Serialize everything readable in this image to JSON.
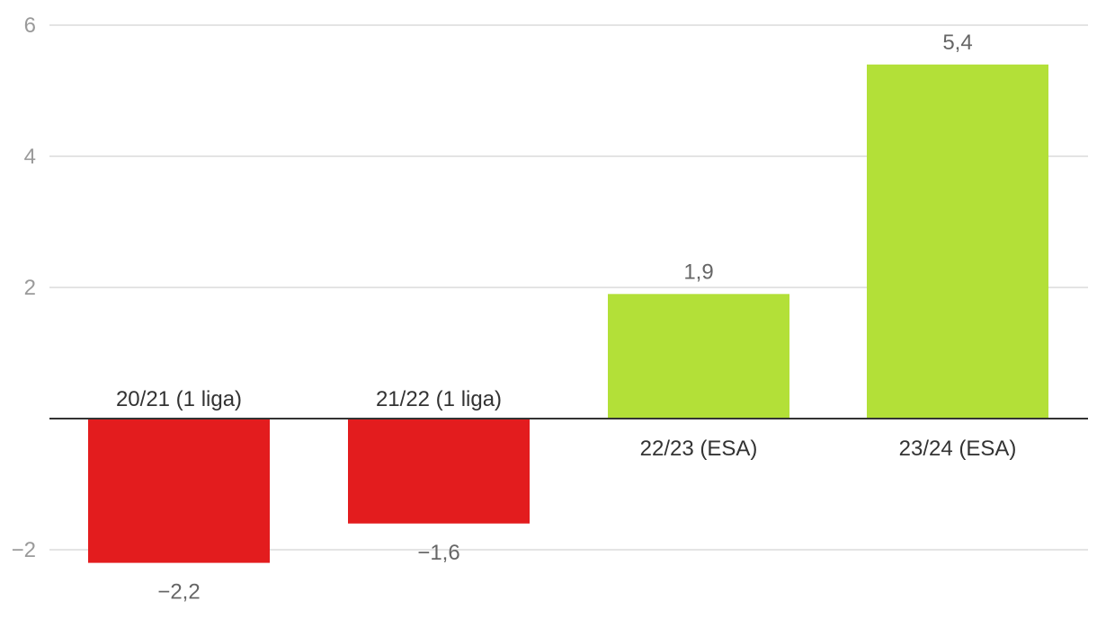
{
  "chart_data": {
    "type": "bar",
    "categories": [
      "20/21 (1 liga)",
      "21/22 (1 liga)",
      "22/23 (ESA)",
      "23/24 (ESA)"
    ],
    "values": [
      -2.2,
      -1.6,
      1.9,
      5.4
    ],
    "value_labels": [
      "−2,2",
      "−1,6",
      "1,9",
      "5,4"
    ],
    "yticks": [
      -2,
      2,
      4,
      6
    ],
    "ytick_labels": [
      "−2",
      "2",
      "4",
      "6"
    ],
    "ylim": [
      -2.7,
      6.3
    ],
    "title": "",
    "xlabel": "",
    "ylabel": "",
    "grid": true,
    "colors": {
      "negative": "#e31c1e",
      "positive": "#b3e038",
      "grid": "#dcdcdc",
      "zero_line": "#333333"
    }
  }
}
